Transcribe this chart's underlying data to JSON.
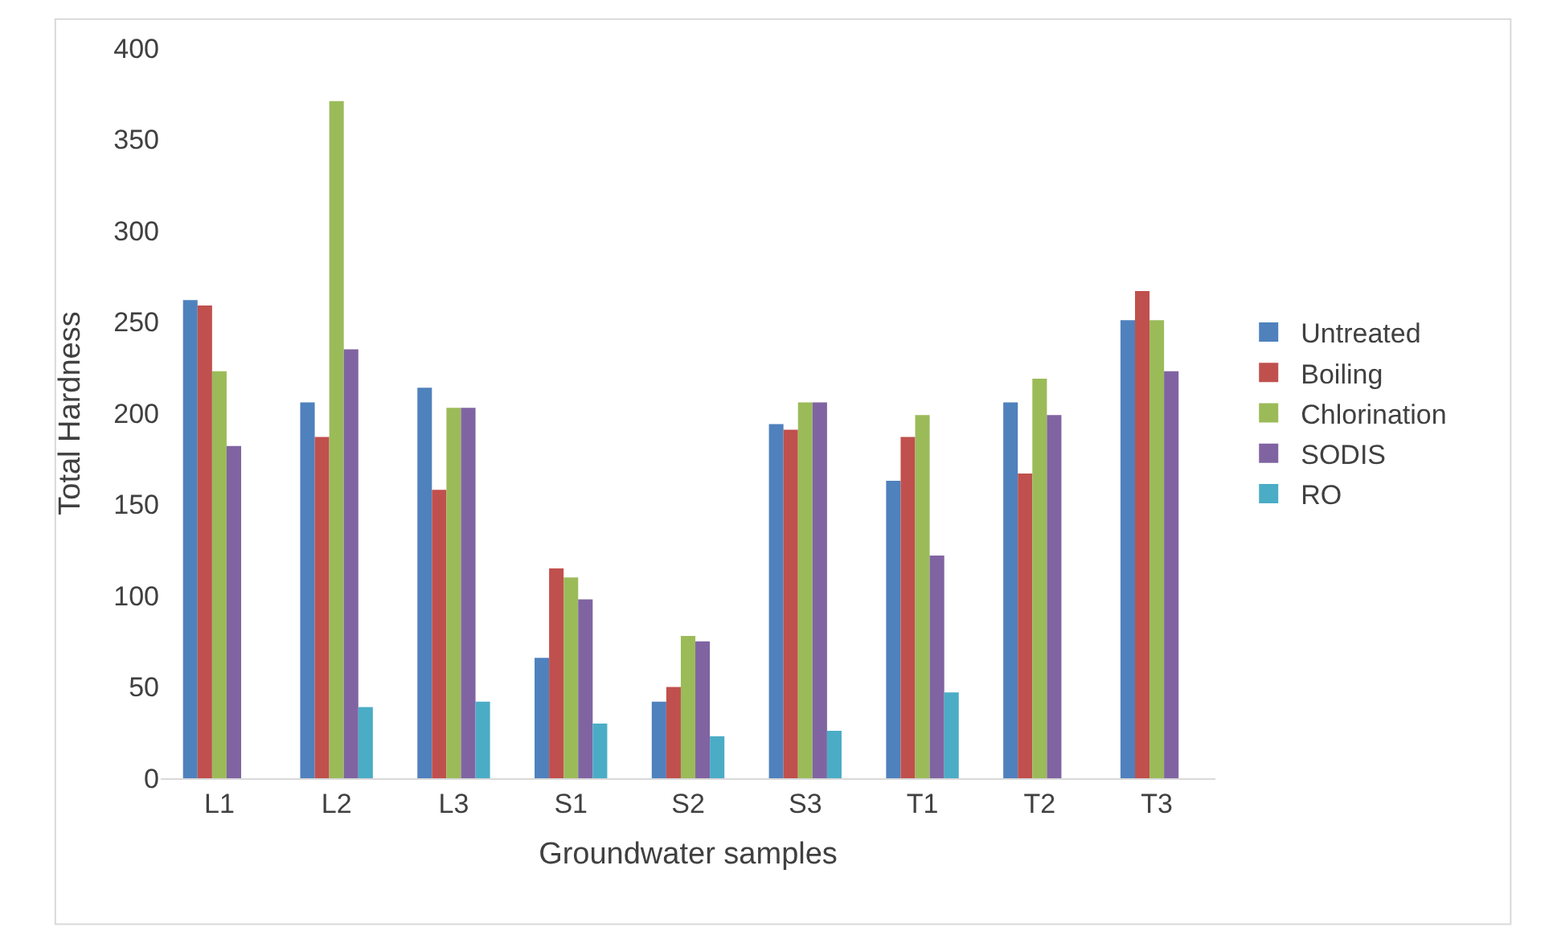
{
  "chart_data": {
    "type": "bar",
    "xlabel": "Groundwater samples",
    "ylabel": "Total Hardness",
    "categories": [
      "L1",
      "L2",
      "L3",
      "S1",
      "S2",
      "S3",
      "T1",
      "T2",
      "T3"
    ],
    "series": [
      {
        "name": "Untreated",
        "color": "#4f81bd",
        "values": [
          262,
          206,
          214,
          66,
          42,
          194,
          163,
          206,
          251
        ]
      },
      {
        "name": "Boiling",
        "color": "#c0504d",
        "values": [
          259,
          187,
          158,
          115,
          50,
          191,
          187,
          167,
          267
        ]
      },
      {
        "name": "Chlorination",
        "color": "#9bbb59",
        "values": [
          223,
          371,
          203,
          110,
          78,
          206,
          199,
          219,
          251
        ]
      },
      {
        "name": "SODIS",
        "color": "#8064a2",
        "values": [
          182,
          235,
          203,
          98,
          75,
          206,
          122,
          199,
          223
        ]
      },
      {
        "name": "RO",
        "color": "#4bacc6",
        "values": [
          null,
          39,
          42,
          30,
          23,
          26,
          47,
          null,
          null
        ]
      }
    ],
    "ylim": [
      0,
      400
    ],
    "yticks": [
      0,
      50,
      100,
      150,
      200,
      250,
      300,
      350,
      400
    ],
    "grid": false,
    "legend": "right"
  }
}
